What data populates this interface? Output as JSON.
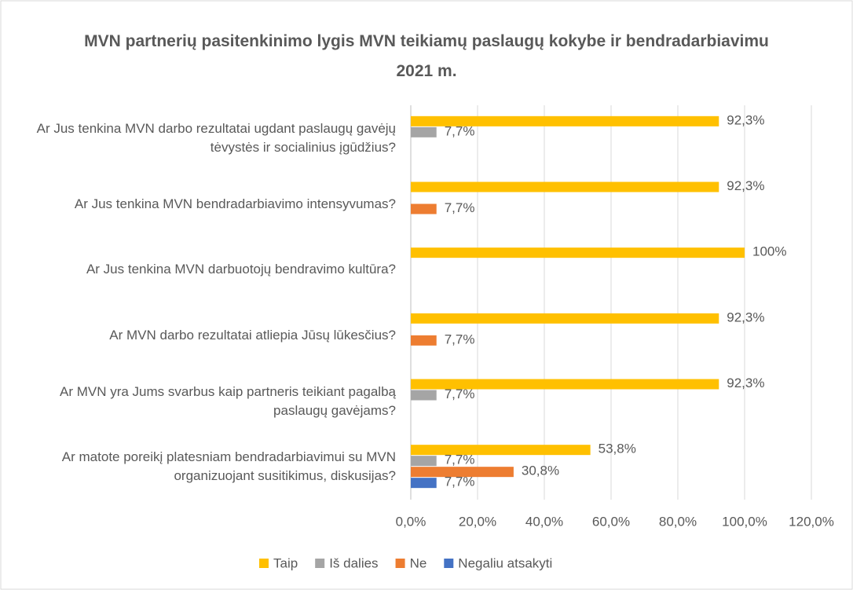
{
  "chart_data": {
    "type": "hbar",
    "title": "MVN partnerių pasitenkinimo lygis MVN teikiamų paslaugų kokybe ir bendradarbiavimu 2021 m.",
    "categories": [
      "Ar Jus tenkina MVN darbo rezultatai ugdant paslaugų gavėjų tėvystės ir socialinius įgūdžius?",
      "Ar Jus tenkina MVN bendradarbiavimo intensyvumas?",
      "Ar Jus tenkina MVN darbuotojų bendravimo kultūra?",
      "Ar MVN darbo rezultatai atliepia Jūsų lūkesčius?",
      "Ar MVN yra Jums svarbus kaip partneris teikiant pagalbą paslaugų gavėjams?",
      "Ar matote poreikį platesniam bendradarbiavimui su MVN organizuojant susitikimus, diskusijas?"
    ],
    "series": [
      {
        "name": "Taip",
        "color": "#FFC000",
        "values": [
          92.3,
          92.3,
          100,
          92.3,
          92.3,
          53.8
        ],
        "value_labels": [
          "92,3%",
          "92,3%",
          "100%",
          "92,3%",
          "92,3%",
          "53,8%"
        ]
      },
      {
        "name": "Iš dalies",
        "color": "#A5A5A5",
        "values": [
          7.7,
          null,
          null,
          null,
          7.7,
          7.7
        ],
        "value_labels": [
          "7,7%",
          null,
          null,
          null,
          "7,7%",
          "7,7%"
        ]
      },
      {
        "name": "Ne",
        "color": "#ED7D31",
        "values": [
          null,
          7.7,
          null,
          7.7,
          null,
          30.8
        ],
        "value_labels": [
          null,
          "7,7%",
          null,
          "7,7%",
          null,
          "30,8%"
        ]
      },
      {
        "name": "Negaliu atsakyti",
        "color": "#4472C4",
        "values": [
          null,
          null,
          null,
          null,
          null,
          7.7
        ],
        "value_labels": [
          null,
          null,
          null,
          null,
          null,
          "7,7%"
        ]
      }
    ],
    "xlim": [
      0,
      120
    ],
    "xticks": [
      {
        "value": 0,
        "label": "0,0%"
      },
      {
        "value": 20,
        "label": "20,0%"
      },
      {
        "value": 40,
        "label": "40,0%"
      },
      {
        "value": 60,
        "label": "60,0%"
      },
      {
        "value": 80,
        "label": "80,0%"
      },
      {
        "value": 100,
        "label": "100,0%"
      },
      {
        "value": 120,
        "label": "120,0%"
      }
    ],
    "grid": true,
    "legend": "bottom"
  }
}
